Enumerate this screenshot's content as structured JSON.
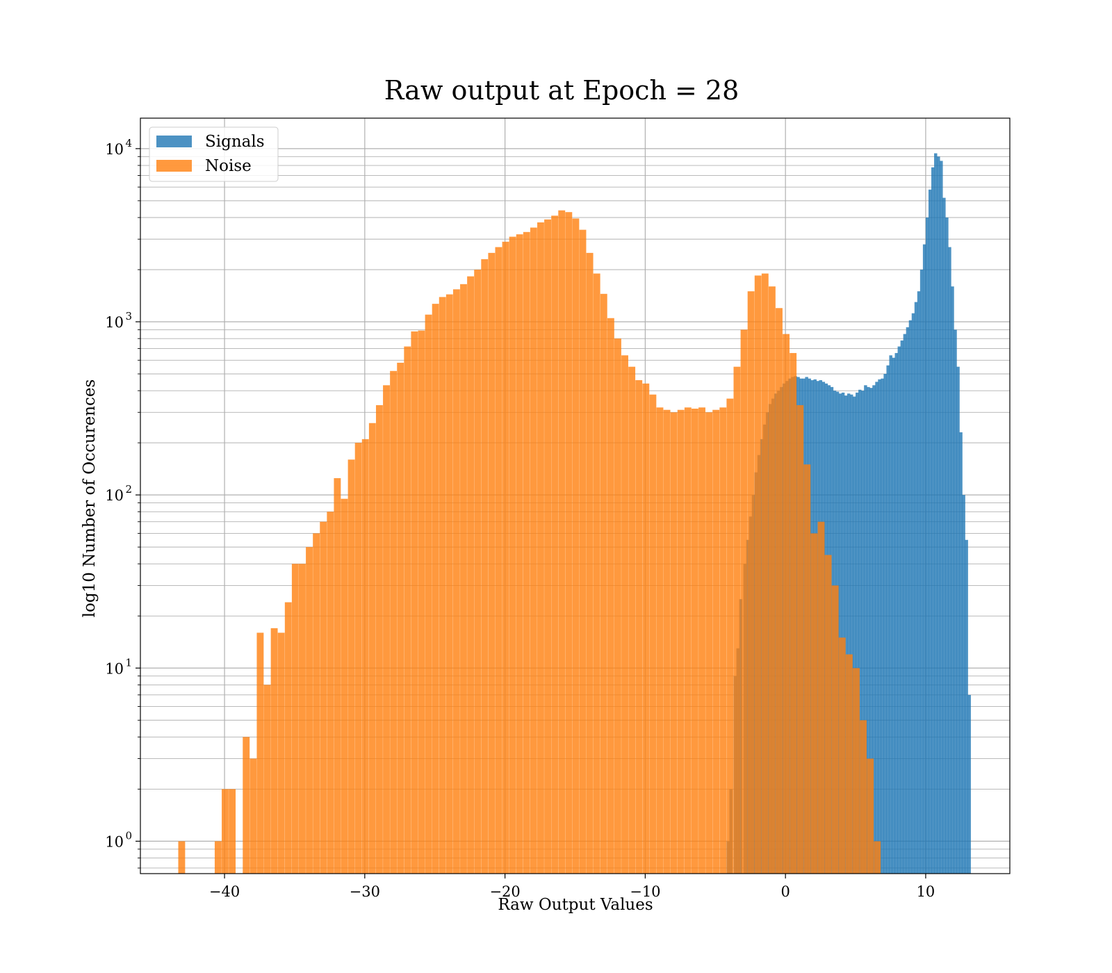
{
  "chart_data": {
    "type": "bar",
    "title": "Raw output at Epoch = 28",
    "xlabel": "Raw Output Values",
    "ylabel": "log10 Number of Occurences",
    "xlim": [
      -46,
      16
    ],
    "ylim": [
      0.65,
      15000
    ],
    "yscale": "log",
    "grid": true,
    "legend_position": "top-left",
    "x_ticks": [
      {
        "value": -40,
        "label": "−40"
      },
      {
        "value": -30,
        "label": "−30"
      },
      {
        "value": -20,
        "label": "−20"
      },
      {
        "value": -10,
        "label": "−10"
      },
      {
        "value": 0,
        "label": "0"
      },
      {
        "value": 10,
        "label": "10"
      }
    ],
    "y_ticks": [
      {
        "value": 1,
        "base": "10",
        "exp": "0"
      },
      {
        "value": 10,
        "base": "10",
        "exp": "1"
      },
      {
        "value": 100,
        "base": "10",
        "exp": "2"
      },
      {
        "value": 1000,
        "base": "10",
        "exp": "3"
      },
      {
        "value": 10000,
        "base": "10",
        "exp": "4"
      }
    ],
    "series": [
      {
        "name": "Signals",
        "color": "#1f77b4",
        "opacity": 0.8,
        "bin_width": 0.221,
        "bins": [
          [
            -4.79,
            0.65
          ],
          [
            -4.2,
            1
          ],
          [
            -4.0,
            2
          ],
          [
            -3.7,
            9
          ],
          [
            -3.5,
            13
          ],
          [
            -3.3,
            25
          ],
          [
            -3.0,
            40
          ],
          [
            -2.8,
            55
          ],
          [
            -2.6,
            75
          ],
          [
            -2.4,
            100
          ],
          [
            -2.2,
            135
          ],
          [
            -2.0,
            170
          ],
          [
            -1.8,
            210
          ],
          [
            -1.6,
            255
          ],
          [
            -1.4,
            300
          ],
          [
            -1.2,
            335
          ],
          [
            -1.0,
            360
          ],
          [
            -0.8,
            385
          ],
          [
            -0.6,
            400
          ],
          [
            -0.4,
            420
          ],
          [
            -0.2,
            440
          ],
          [
            0.0,
            455
          ],
          [
            0.2,
            470
          ],
          [
            0.4,
            480
          ],
          [
            0.6,
            485
          ],
          [
            0.8,
            480
          ],
          [
            1.0,
            470
          ],
          [
            1.2,
            470
          ],
          [
            1.4,
            480
          ],
          [
            1.6,
            470
          ],
          [
            1.8,
            460
          ],
          [
            2.0,
            465
          ],
          [
            2.2,
            455
          ],
          [
            2.4,
            460
          ],
          [
            2.6,
            450
          ],
          [
            2.8,
            440
          ],
          [
            3.0,
            430
          ],
          [
            3.2,
            420
          ],
          [
            3.4,
            400
          ],
          [
            3.6,
            395
          ],
          [
            3.8,
            385
          ],
          [
            4.0,
            390
          ],
          [
            4.2,
            375
          ],
          [
            4.4,
            385
          ],
          [
            4.6,
            380
          ],
          [
            4.8,
            370
          ],
          [
            5.0,
            390
          ],
          [
            5.2,
            405
          ],
          [
            5.4,
            400
          ],
          [
            5.6,
            430
          ],
          [
            5.8,
            420
          ],
          [
            6.0,
            415
          ],
          [
            6.2,
            430
          ],
          [
            6.4,
            450
          ],
          [
            6.6,
            465
          ],
          [
            6.8,
            470
          ],
          [
            7.0,
            500
          ],
          [
            7.2,
            560
          ],
          [
            7.4,
            640
          ],
          [
            7.6,
            620
          ],
          [
            7.8,
            660
          ],
          [
            8.0,
            720
          ],
          [
            8.2,
            780
          ],
          [
            8.4,
            850
          ],
          [
            8.6,
            930
          ],
          [
            8.8,
            1020
          ],
          [
            9.0,
            1120
          ],
          [
            9.2,
            1300
          ],
          [
            9.4,
            1500
          ],
          [
            9.6,
            2000
          ],
          [
            9.8,
            2800
          ],
          [
            10.0,
            4000
          ],
          [
            10.2,
            5800
          ],
          [
            10.4,
            7800
          ],
          [
            10.6,
            9400
          ],
          [
            10.8,
            9000
          ],
          [
            11.0,
            8500
          ],
          [
            11.2,
            5200
          ],
          [
            11.4,
            4000
          ],
          [
            11.6,
            2700
          ],
          [
            11.8,
            1600
          ],
          [
            12.0,
            900
          ],
          [
            12.2,
            550
          ],
          [
            12.4,
            230
          ],
          [
            12.6,
            100
          ],
          [
            12.8,
            55
          ],
          [
            13.0,
            7
          ]
        ]
      },
      {
        "name": "Noise",
        "color": "#ff7f0e",
        "opacity": 0.8,
        "bin_width": 0.49,
        "bins": [
          [
            -43.3,
            1
          ],
          [
            -40.7,
            1
          ],
          [
            -40.2,
            2
          ],
          [
            -39.7,
            2
          ],
          [
            -38.7,
            4
          ],
          [
            -38.2,
            3
          ],
          [
            -37.7,
            16
          ],
          [
            -37.2,
            8
          ],
          [
            -36.7,
            17
          ],
          [
            -36.2,
            16
          ],
          [
            -35.7,
            24
          ],
          [
            -35.2,
            40
          ],
          [
            -34.7,
            40
          ],
          [
            -34.2,
            50
          ],
          [
            -33.7,
            60
          ],
          [
            -33.2,
            70
          ],
          [
            -32.7,
            80
          ],
          [
            -32.2,
            125
          ],
          [
            -31.7,
            95
          ],
          [
            -31.2,
            160
          ],
          [
            -30.7,
            200
          ],
          [
            -30.2,
            210
          ],
          [
            -29.7,
            260
          ],
          [
            -29.2,
            330
          ],
          [
            -28.7,
            430
          ],
          [
            -28.2,
            520
          ],
          [
            -27.7,
            580
          ],
          [
            -27.2,
            720
          ],
          [
            -26.7,
            880
          ],
          [
            -26.2,
            890
          ],
          [
            -25.7,
            1100
          ],
          [
            -25.2,
            1270
          ],
          [
            -24.7,
            1390
          ],
          [
            -24.2,
            1440
          ],
          [
            -23.7,
            1540
          ],
          [
            -23.2,
            1650
          ],
          [
            -22.7,
            1830
          ],
          [
            -22.2,
            2000
          ],
          [
            -21.7,
            2300
          ],
          [
            -21.2,
            2500
          ],
          [
            -20.7,
            2700
          ],
          [
            -20.2,
            2900
          ],
          [
            -19.7,
            3100
          ],
          [
            -19.2,
            3200
          ],
          [
            -18.7,
            3300
          ],
          [
            -18.2,
            3500
          ],
          [
            -17.7,
            3750
          ],
          [
            -17.2,
            3900
          ],
          [
            -16.7,
            4100
          ],
          [
            -16.2,
            4400
          ],
          [
            -15.7,
            4300
          ],
          [
            -15.2,
            3950
          ],
          [
            -14.7,
            3400
          ],
          [
            -14.2,
            2500
          ],
          [
            -13.7,
            1900
          ],
          [
            -13.2,
            1450
          ],
          [
            -12.7,
            1050
          ],
          [
            -12.2,
            800
          ],
          [
            -11.7,
            640
          ],
          [
            -11.2,
            550
          ],
          [
            -10.7,
            460
          ],
          [
            -10.2,
            440
          ],
          [
            -9.7,
            380
          ],
          [
            -9.2,
            320
          ],
          [
            -8.7,
            310
          ],
          [
            -8.2,
            300
          ],
          [
            -7.7,
            310
          ],
          [
            -7.2,
            320
          ],
          [
            -6.7,
            315
          ],
          [
            -6.2,
            320
          ],
          [
            -5.7,
            300
          ],
          [
            -5.2,
            310
          ],
          [
            -4.7,
            320
          ],
          [
            -4.2,
            360
          ],
          [
            -3.7,
            550
          ],
          [
            -3.2,
            900
          ],
          [
            -2.7,
            1500
          ],
          [
            -2.2,
            1850
          ],
          [
            -1.7,
            1900
          ],
          [
            -1.2,
            1600
          ],
          [
            -0.7,
            1200
          ],
          [
            -0.2,
            850
          ],
          [
            0.3,
            660
          ],
          [
            0.8,
            330
          ],
          [
            1.3,
            150
          ],
          [
            1.8,
            60
          ],
          [
            2.3,
            70
          ],
          [
            2.8,
            45
          ],
          [
            3.3,
            30
          ],
          [
            3.8,
            15
          ],
          [
            4.3,
            12
          ],
          [
            4.8,
            10
          ],
          [
            5.3,
            5
          ],
          [
            5.8,
            3
          ],
          [
            6.3,
            1
          ]
        ]
      }
    ]
  }
}
